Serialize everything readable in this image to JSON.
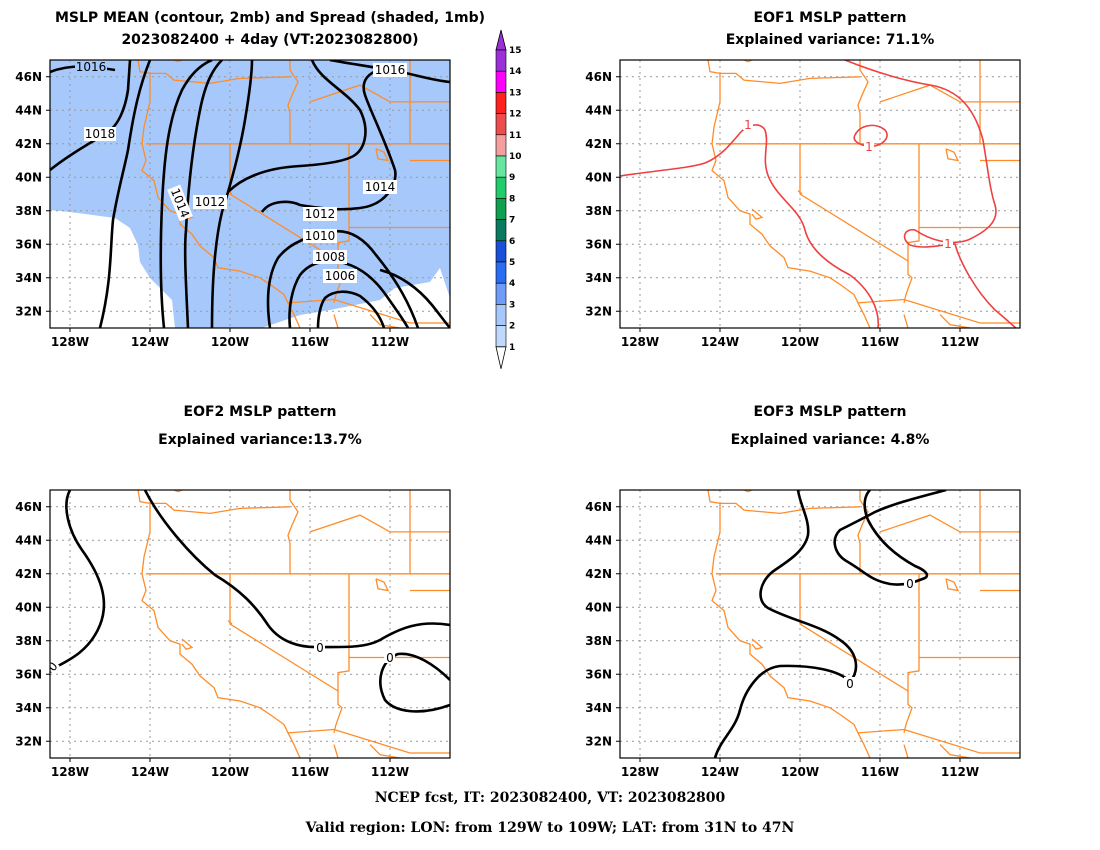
{
  "panels": [
    {
      "title1": "MSLP MEAN (contour, 2mb) and Spread (shaded, 1mb)",
      "title2": "2023082400 + 4day (VT:2023082800)"
    },
    {
      "title1": "EOF1 MSLP pattern",
      "title2": "Explained variance: 71.1%"
    },
    {
      "title1": "EOF2 MSLP pattern",
      "title2": "Explained variance:13.7%"
    },
    {
      "title1": "EOF3 MSLP pattern",
      "title2": "Explained variance: 4.8%"
    }
  ],
  "lat_labels": [
    "46N",
    "44N",
    "42N",
    "40N",
    "38N",
    "36N",
    "34N",
    "32N"
  ],
  "lon_labels": [
    "128W",
    "124W",
    "120W",
    "116W",
    "112W"
  ],
  "colorbar": {
    "labels": [
      "15",
      "14",
      "13",
      "12",
      "11",
      "10",
      "9",
      "8",
      "7",
      "6",
      "5",
      "4",
      "3",
      "2",
      "1"
    ],
    "colors": [
      "#9b30d8",
      "#ff00ff",
      "#ff2020",
      "#ee4d4d",
      "#f4a0a0",
      "#66e6a0",
      "#20cc6c",
      "#10a050",
      "#0a7a60",
      "#1a4fd8",
      "#2a6cf2",
      "#6e9cf6",
      "#a6c8fa",
      "#c0d8fc"
    ]
  },
  "contour_labels": {
    "mean": [
      "1016",
      "1018",
      "1016",
      "1014",
      "1012",
      "1014",
      "1012",
      "1010",
      "1008",
      "1006"
    ],
    "eof1": [
      "1",
      "1",
      "1"
    ],
    "eof2": [
      "0",
      "0",
      "0"
    ],
    "eof3": [
      "0",
      "0"
    ]
  },
  "footer": {
    "line1": "NCEP fcst, IT: 2023082400, VT: 2023082800",
    "line2": "Valid region: LON: from 129W to 109W; LAT: from 31N to 47N"
  },
  "colors": {
    "coast": "#ff8c28",
    "spread_shade": "#a6c8fa",
    "eof1_line": "#ee4040",
    "contour": "#000000"
  }
}
